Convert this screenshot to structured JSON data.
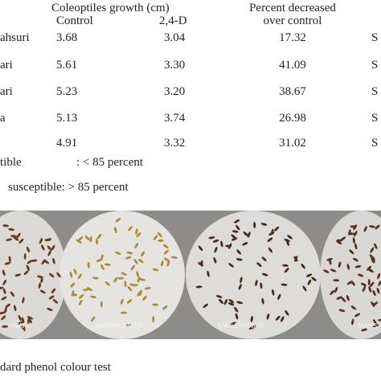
{
  "header": {
    "group": "Coleoptiles growth (cm)",
    "control": "Control",
    "treated": "2,4-D",
    "percent_line1": "Percent decreased",
    "percent_line2": "over control"
  },
  "table": {
    "rows": [
      [
        "ahsuri",
        "3.68",
        "3.04",
        "17.32",
        "S"
      ],
      [
        "ari",
        "5.61",
        "3.30",
        "41.09",
        "S"
      ],
      [
        "ari",
        "5.23",
        "3.20",
        "38.67",
        "S"
      ],
      [
        "a",
        "5.13",
        "3.74",
        "26.98",
        "S"
      ],
      [
        "",
        "4.91",
        "3.32",
        "31.02",
        "S"
      ]
    ]
  },
  "notes": {
    "line1_left": "tible",
    "line1_right": ": < 85 percent",
    "line2": "susceptible: > 85 percent"
  },
  "figure": {
    "labels": [
      "HWARI",
      "KARMAMASURI",
      "SAMLESHWARI",
      "MAHS"
    ],
    "caption": "dard phenol colour test"
  }
}
